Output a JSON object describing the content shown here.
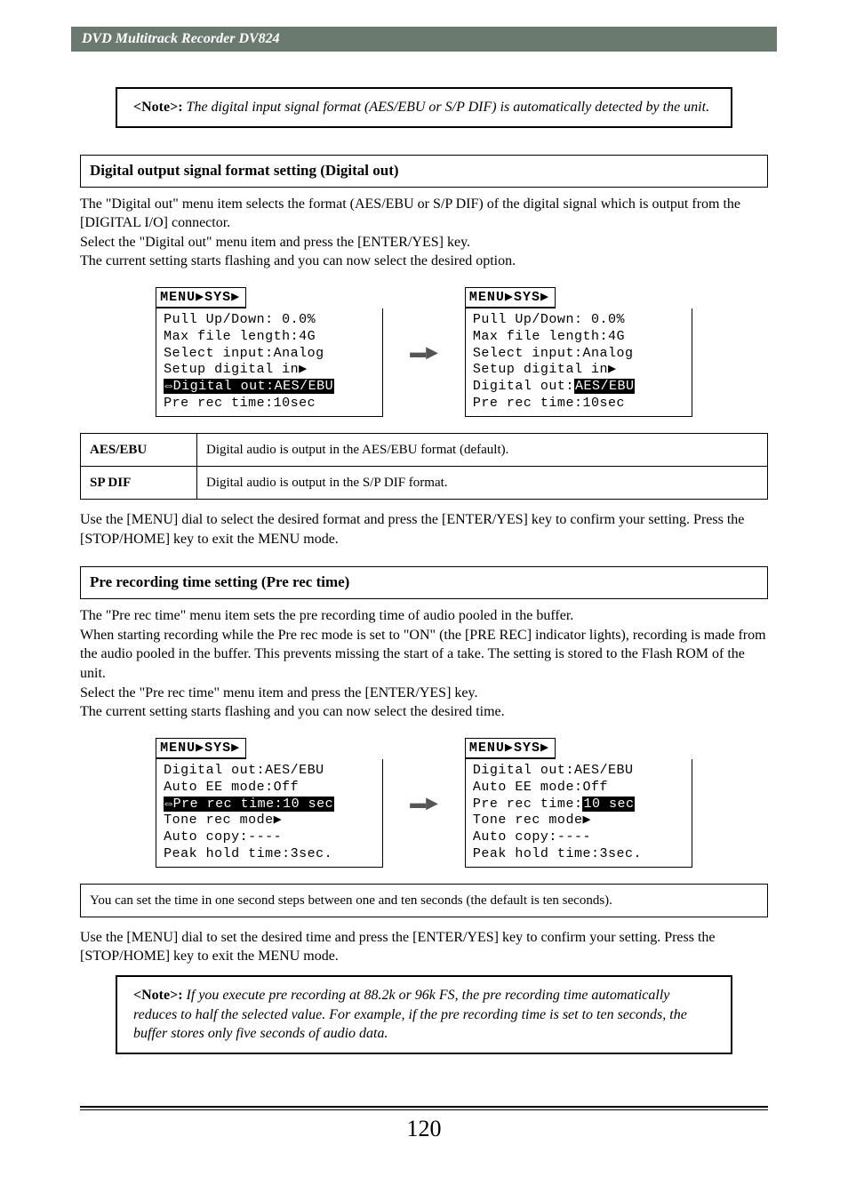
{
  "header": {
    "title": "DVD Multitrack Recorder DV824"
  },
  "note1": {
    "label": "<Note>:",
    "text": "The digital input signal format (AES/EBU or S/P DIF) is automatically detected by the unit."
  },
  "digitalOut": {
    "heading": "Digital output signal format setting (Digital out)",
    "para1": "The \"Digital out\" menu item selects the format (AES/EBU or S/P DIF) of the digital signal which is output from the [DIGITAL I/O] connector.",
    "para2": "Select the \"Digital out\" menu item and press the [ENTER/YES] key.",
    "para3": "The current setting starts flashing and you can now select the desired option.",
    "lcdTitle": "MENU▶SYS▶",
    "lcdL_plain": "Pull Up/Down: 0.0%\nMax file length:4G\nSelect input:Analog\nSetup digital in▶",
    "lcdL_inv": "⇔Digital out:AES/EBU",
    "lcdL_tail": "Pre rec time:10sec",
    "lcdR_plain": "Pull Up/Down: 0.0%\nMax file length:4G\nSelect input:Analog\nSetup digital in▶\nDigital out:",
    "lcdR_inv": "AES/EBU",
    "lcdR_tail": "Pre rec time:10sec",
    "tbl": {
      "r1k": "AES/EBU",
      "r1v": "Digital audio is output in the AES/EBU format (default).",
      "r2k": "SP DIF",
      "r2v": "Digital audio is output in the S/P DIF format."
    },
    "para4": "Use the [MENU] dial to select the desired format and press the [ENTER/YES] key to confirm your setting. Press the [STOP/HOME] key to exit the MENU mode."
  },
  "preRec": {
    "heading": "Pre recording time setting (Pre rec time)",
    "para1": "The \"Pre rec time\" menu item sets the pre recording time of audio pooled in the buffer.",
    "para2": "When starting recording while the Pre rec mode is set to \"ON\" (the [PRE REC] indicator lights), recording is made from the audio pooled in the buffer. This prevents missing the start of a take. The setting is stored to the Flash ROM of the unit.",
    "para3": "Select the \"Pre rec time\" menu item and press the [ENTER/YES] key.",
    "para4": "The current setting starts flashing and you can now select the desired time.",
    "lcdTitle": "MENU▶SYS▶",
    "lcdL_plain": "Digital out:AES/EBU\nAuto EE mode:Off",
    "lcdL_inv": "⇔Pre rec time:10 sec",
    "lcdL_tail": "Tone rec mode▶\nAuto copy:----\nPeak hold time:3sec.",
    "lcdR_plain": "Digital out:AES/EBU\nAuto EE mode:Off\nPre rec time:",
    "lcdR_inv": "10 sec",
    "lcdR_tail": "Tone rec mode▶\nAuto copy:----\nPeak hold time:3sec.",
    "range": "You can set the time in one second steps between one and ten seconds (the default is ten seconds).",
    "para5": "Use the [MENU] dial to set the desired time and press the [ENTER/YES] key to confirm your setting. Press the [STOP/HOME] key to exit the MENU mode."
  },
  "note2": {
    "label": "<Note>:",
    "text": "If you execute pre recording at 88.2k or 96k FS, the pre recording time automatically reduces to half the selected value. For example, if the pre recording time is set to ten seconds, the buffer stores only five seconds of audio data."
  },
  "pageNumber": "120"
}
